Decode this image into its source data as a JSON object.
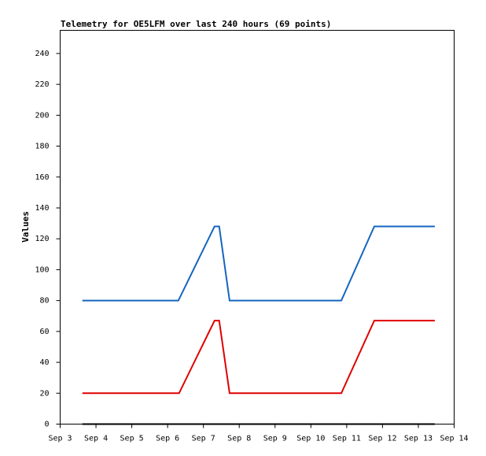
{
  "chart_data": {
    "type": "line",
    "title": "Telemetry for OE5LFM over last 240 hours (69 points)",
    "y_label": "Values",
    "series": [
      {
        "color": "#1565c0",
        "x": [
          3.62,
          6.3,
          7.31,
          7.44,
          7.73,
          10.85,
          11.77,
          13.46
        ],
        "values": [
          80,
          80,
          128,
          128,
          80,
          80,
          128,
          128
        ]
      },
      {
        "color": "#e00000",
        "x": [
          3.62,
          6.32,
          7.31,
          7.44,
          7.73,
          10.85,
          11.77,
          13.46
        ],
        "values": [
          20,
          20,
          67,
          67,
          20,
          20,
          67,
          67
        ]
      },
      {
        "color": "#000000",
        "x": [
          3.62,
          13.46
        ],
        "values": [
          0,
          0
        ]
      }
    ],
    "xlim": [
      3,
      14
    ],
    "xticks": [
      {
        "value": 3,
        "label": "Sep 3"
      },
      {
        "value": 4,
        "label": "Sep 4"
      },
      {
        "value": 5,
        "label": "Sep 5"
      },
      {
        "value": 6,
        "label": "Sep 6"
      },
      {
        "value": 7,
        "label": "Sep 7"
      },
      {
        "value": 8,
        "label": "Sep 8"
      },
      {
        "value": 9,
        "label": "Sep 9"
      },
      {
        "value": 10,
        "label": "Sep 10"
      },
      {
        "value": 11,
        "label": "Sep 11"
      },
      {
        "value": 12,
        "label": "Sep 12"
      },
      {
        "value": 13,
        "label": "Sep 13"
      },
      {
        "value": 14,
        "label": "Sep 14"
      }
    ],
    "ylim": [
      0,
      255
    ],
    "yticks": [
      0,
      20,
      40,
      60,
      80,
      100,
      120,
      140,
      160,
      180,
      200,
      220,
      240
    ]
  }
}
